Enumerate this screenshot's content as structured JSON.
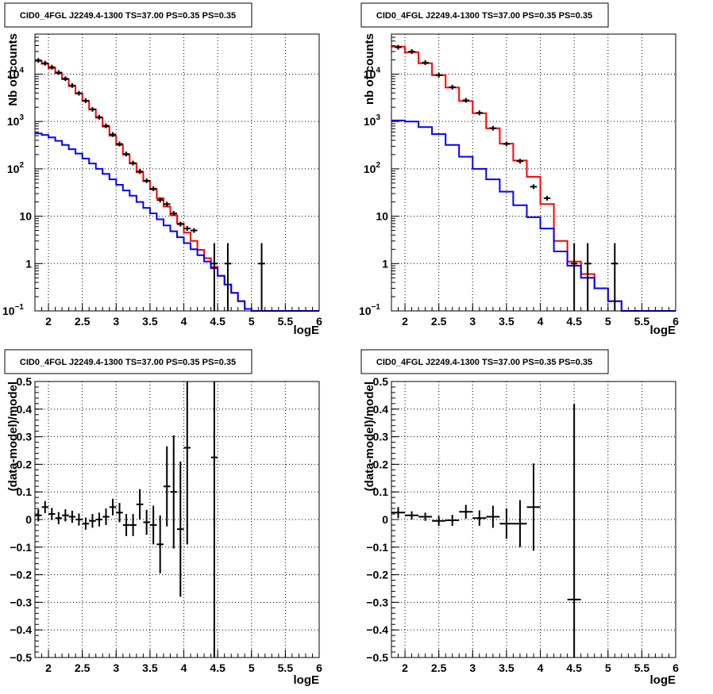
{
  "chart_data": [
    {
      "id": "top-left",
      "type": "step",
      "title": "CID0_4FGL J2249.4-1300 TS=37.00 PS=0.35 PS=0.35",
      "xlabel": "logE",
      "ylabel": "Nb of counts",
      "xlim": [
        1.8,
        6.0
      ],
      "ylim": [
        0.1,
        70000
      ],
      "yscale": "log",
      "grid": true,
      "xticks": [
        "2",
        "2.5",
        "3",
        "3.5",
        "4",
        "4.5",
        "5",
        "5.5",
        "6"
      ],
      "yticks": [
        {
          "v": 0.1,
          "t": "10",
          "sup": "−1"
        },
        {
          "v": 1,
          "t": "1"
        },
        {
          "v": 10,
          "t": "10"
        },
        {
          "v": 100,
          "t": "10",
          "sup": "2"
        },
        {
          "v": 1000,
          "t": "10",
          "sup": "3"
        },
        {
          "v": 10000,
          "t": "10",
          "sup": "4"
        }
      ],
      "bin_edges": [
        1.8,
        1.9,
        2.0,
        2.1,
        2.2,
        2.3,
        2.4,
        2.5,
        2.6,
        2.7,
        2.8,
        2.9,
        3.0,
        3.1,
        3.2,
        3.3,
        3.4,
        3.5,
        3.6,
        3.7,
        3.8,
        3.9,
        4.0,
        4.1,
        4.2,
        4.3,
        4.4,
        4.5,
        4.6,
        4.7,
        4.8,
        4.9,
        5.0,
        5.1,
        5.2,
        5.3,
        5.4,
        5.5,
        5.6,
        5.7,
        5.8,
        5.9,
        6.0
      ],
      "series": [
        {
          "name": "",
          "color": "#ff0000",
          "values": [
            19000,
            16500,
            13500,
            10500,
            7800,
            5600,
            3900,
            2700,
            1800,
            1200,
            780,
            500,
            320,
            200,
            130,
            85,
            55,
            37,
            24,
            16,
            10.5,
            7,
            4.5,
            3,
            1.95,
            1.3,
            0.85,
            0.55,
            0.36,
            0.24,
            0.16,
            0.11,
            0.1,
            0.1,
            0.1,
            0.1,
            0.1,
            0.1,
            0.1,
            0.1,
            0.1,
            0.1
          ]
        },
        {
          "name": "",
          "color": "#0000ff",
          "values": [
            560,
            520,
            460,
            390,
            320,
            260,
            210,
            165,
            130,
            100,
            78,
            60,
            46,
            35,
            27,
            20,
            15,
            11.5,
            8.6,
            6.4,
            4.8,
            3.6,
            2.7,
            2.0,
            1.5,
            1.1,
            0.8,
            0.55,
            0.36,
            0.24,
            0.16,
            0.11,
            0.1,
            0.1,
            0.1,
            0.1,
            0.1,
            0.1,
            0.1,
            0.1,
            0.1,
            0.1
          ]
        }
      ],
      "data_points": [
        {
          "x": 1.85,
          "y": 19500
        },
        {
          "x": 1.95,
          "y": 17000
        },
        {
          "x": 2.05,
          "y": 14000
        },
        {
          "x": 2.15,
          "y": 10800
        },
        {
          "x": 2.25,
          "y": 8000
        },
        {
          "x": 2.35,
          "y": 5750
        },
        {
          "x": 2.45,
          "y": 3950
        },
        {
          "x": 2.55,
          "y": 2750
        },
        {
          "x": 2.65,
          "y": 1800
        },
        {
          "x": 2.75,
          "y": 1230
        },
        {
          "x": 2.85,
          "y": 810
        },
        {
          "x": 2.95,
          "y": 530
        },
        {
          "x": 3.05,
          "y": 335
        },
        {
          "x": 3.15,
          "y": 205
        },
        {
          "x": 3.25,
          "y": 132
        },
        {
          "x": 3.35,
          "y": 88
        },
        {
          "x": 3.45,
          "y": 56
        },
        {
          "x": 3.55,
          "y": 38
        },
        {
          "x": 3.65,
          "y": 22
        },
        {
          "x": 3.75,
          "y": 18
        },
        {
          "x": 3.85,
          "y": 11.5
        },
        {
          "x": 3.95,
          "y": 6.8
        },
        {
          "x": 4.05,
          "y": 5.5
        },
        {
          "x": 4.15,
          "y": 5.0
        },
        {
          "x": 4.45,
          "y": 1,
          "elo": 0.1,
          "ehi": 2.7
        },
        {
          "x": 4.65,
          "y": 1,
          "elo": 0.1,
          "ehi": 2.7
        },
        {
          "x": 5.15,
          "y": 1,
          "elo": 0.1,
          "ehi": 2.7
        }
      ]
    },
    {
      "id": "top-right",
      "type": "step",
      "title": "CID0_4FGL J2249.4-1300 TS=37.00 PS=0.35 PS=0.35",
      "xlabel": "logE",
      "ylabel": "nb of counts",
      "xlim": [
        1.8,
        6.0
      ],
      "ylim": [
        0.1,
        70000
      ],
      "yscale": "log",
      "grid": true,
      "xticks": [
        "2",
        "2.5",
        "3",
        "3.5",
        "4",
        "4.5",
        "5",
        "5.5",
        "6"
      ],
      "yticks": [
        {
          "v": 0.1,
          "t": "10",
          "sup": "−1"
        },
        {
          "v": 1,
          "t": "1"
        },
        {
          "v": 10,
          "t": "10"
        },
        {
          "v": 100,
          "t": "10",
          "sup": "2"
        },
        {
          "v": 1000,
          "t": "10",
          "sup": "3"
        },
        {
          "v": 10000,
          "t": "10",
          "sup": "4"
        }
      ],
      "bin_edges": [
        1.8,
        2.0,
        2.2,
        2.4,
        2.6,
        2.8,
        3.0,
        3.2,
        3.4,
        3.6,
        3.8,
        4.0,
        4.2,
        4.4,
        4.6,
        4.8,
        5.0,
        5.2,
        5.4,
        5.6,
        5.8,
        6.0
      ],
      "series": [
        {
          "name": "",
          "color": "#ff0000",
          "values": [
            38000,
            29000,
            17000,
            9500,
            5200,
            2700,
            1500,
            720,
            340,
            150,
            68,
            18,
            3,
            1.1,
            0.6,
            0.3,
            0.16,
            0.1,
            0.1,
            0.1,
            0.1
          ]
        },
        {
          "name": "",
          "color": "#0000ff",
          "values": [
            1050,
            1000,
            760,
            540,
            320,
            180,
            100,
            60,
            33,
            17,
            9.5,
            5.5,
            1.8,
            0.9,
            0.5,
            0.3,
            0.16,
            0.1,
            0.1,
            0.1,
            0.1
          ]
        }
      ],
      "data_points": [
        {
          "x": 1.9,
          "y": 37000
        },
        {
          "x": 2.1,
          "y": 30000
        },
        {
          "x": 2.3,
          "y": 17500
        },
        {
          "x": 2.5,
          "y": 9500
        },
        {
          "x": 2.7,
          "y": 5300
        },
        {
          "x": 2.9,
          "y": 2800
        },
        {
          "x": 3.1,
          "y": 1520
        },
        {
          "x": 3.3,
          "y": 720
        },
        {
          "x": 3.5,
          "y": 335
        },
        {
          "x": 3.7,
          "y": 145
        },
        {
          "x": 3.9,
          "y": 42
        },
        {
          "x": 4.1,
          "y": 24
        },
        {
          "x": 4.5,
          "y": 1,
          "elo": 0.1,
          "ehi": 2.7
        },
        {
          "x": 4.7,
          "y": 1,
          "elo": 0.1,
          "ehi": 2.7
        },
        {
          "x": 5.1,
          "y": 1,
          "elo": 0.1,
          "ehi": 2.7
        }
      ]
    },
    {
      "id": "bottom-left",
      "type": "scatter",
      "title": "CID0_4FGL J2249.4-1300 TS=37.00 PS=0.35 PS=0.35",
      "xlabel": "logE",
      "ylabel": "(data-model)/model",
      "xlim": [
        1.8,
        6.0
      ],
      "ylim": [
        -0.5,
        0.5
      ],
      "yscale": "linear",
      "grid": true,
      "xticks": [
        "2",
        "2.5",
        "3",
        "3.5",
        "4",
        "4.5",
        "5",
        "5.5",
        "6"
      ],
      "yticks": [
        {
          "v": -0.5,
          "t": "−0.5"
        },
        {
          "v": -0.4,
          "t": "−0.4"
        },
        {
          "v": -0.3,
          "t": "−0.3"
        },
        {
          "v": -0.2,
          "t": "−0.2"
        },
        {
          "v": -0.1,
          "t": "−0.1"
        },
        {
          "v": 0,
          "t": "0"
        },
        {
          "v": 0.1,
          "t": "0.1"
        },
        {
          "v": 0.2,
          "t": "0.2"
        },
        {
          "v": 0.3,
          "t": "0.3"
        },
        {
          "v": 0.4,
          "t": "0.4"
        },
        {
          "v": 0.5,
          "t": "0.5"
        }
      ],
      "xerr": 0.05,
      "data_points": [
        {
          "x": 1.85,
          "y": 0.015,
          "e": 0.022
        },
        {
          "x": 1.95,
          "y": 0.045,
          "e": 0.022
        },
        {
          "x": 2.05,
          "y": 0.02,
          "e": 0.022
        },
        {
          "x": 2.15,
          "y": 0.005,
          "e": 0.022
        },
        {
          "x": 2.25,
          "y": 0.015,
          "e": 0.022
        },
        {
          "x": 2.35,
          "y": 0.01,
          "e": 0.022
        },
        {
          "x": 2.45,
          "y": 0.0,
          "e": 0.022
        },
        {
          "x": 2.55,
          "y": -0.015,
          "e": 0.022
        },
        {
          "x": 2.65,
          "y": -0.005,
          "e": 0.025
        },
        {
          "x": 2.75,
          "y": 0.0,
          "e": 0.025
        },
        {
          "x": 2.85,
          "y": 0.01,
          "e": 0.03
        },
        {
          "x": 2.95,
          "y": 0.045,
          "e": 0.03
        },
        {
          "x": 3.05,
          "y": 0.025,
          "e": 0.035
        },
        {
          "x": 3.15,
          "y": -0.02,
          "e": 0.04
        },
        {
          "x": 3.25,
          "y": -0.02,
          "e": 0.04
        },
        {
          "x": 3.35,
          "y": 0.055,
          "e": 0.055
        },
        {
          "x": 3.45,
          "y": -0.01,
          "e": 0.045
        },
        {
          "x": 3.55,
          "y": -0.02,
          "e": 0.07
        },
        {
          "x": 3.65,
          "y": -0.09,
          "e": 0.105
        },
        {
          "x": 3.75,
          "y": 0.12,
          "e": 0.145
        },
        {
          "x": 3.85,
          "y": 0.1,
          "e": 0.205
        },
        {
          "x": 3.95,
          "y": -0.035,
          "e": 0.245
        },
        {
          "x": 4.05,
          "y": 0.26,
          "e": 0.35
        },
        {
          "x": 4.45,
          "y": 0.225,
          "e": 0.9
        }
      ]
    },
    {
      "id": "bottom-right",
      "type": "scatter",
      "title": "CID0_4FGL J2249.4-1300 TS=37.00 PS=0.35 PS=0.35",
      "xlabel": "logE",
      "ylabel": "(data-model)/model",
      "xlim": [
        1.8,
        6.0
      ],
      "ylim": [
        -0.5,
        0.5
      ],
      "yscale": "linear",
      "grid": true,
      "xticks": [
        "2",
        "2.5",
        "3",
        "3.5",
        "4",
        "4.5",
        "5",
        "5.5",
        "6"
      ],
      "yticks": [
        {
          "v": -0.5,
          "t": "−0.5"
        },
        {
          "v": -0.4,
          "t": "−0.4"
        },
        {
          "v": -0.3,
          "t": "−0.3"
        },
        {
          "v": -0.2,
          "t": "−0.2"
        },
        {
          "v": -0.1,
          "t": "−0.1"
        },
        {
          "v": 0,
          "t": "0"
        },
        {
          "v": 0.1,
          "t": "0.1"
        },
        {
          "v": 0.2,
          "t": "0.2"
        },
        {
          "v": 0.3,
          "t": "0.3"
        },
        {
          "v": 0.4,
          "t": "0.4"
        },
        {
          "v": 0.5,
          "t": "0.5"
        }
      ],
      "xerr": 0.1,
      "data_points": [
        {
          "x": 1.9,
          "y": 0.025,
          "e": 0.02
        },
        {
          "x": 2.1,
          "y": 0.015,
          "e": 0.015
        },
        {
          "x": 2.3,
          "y": 0.01,
          "e": 0.015
        },
        {
          "x": 2.5,
          "y": -0.005,
          "e": 0.018
        },
        {
          "x": 2.7,
          "y": -0.003,
          "e": 0.02
        },
        {
          "x": 2.9,
          "y": 0.028,
          "e": 0.025
        },
        {
          "x": 3.1,
          "y": 0.005,
          "e": 0.028
        },
        {
          "x": 3.3,
          "y": 0.01,
          "e": 0.04
        },
        {
          "x": 3.5,
          "y": -0.015,
          "e": 0.055
        },
        {
          "x": 3.7,
          "y": -0.015,
          "e": 0.085
        },
        {
          "x": 3.9,
          "y": 0.045,
          "e": 0.158
        },
        {
          "x": 4.5,
          "y": -0.29,
          "e": 0.71
        }
      ]
    }
  ]
}
